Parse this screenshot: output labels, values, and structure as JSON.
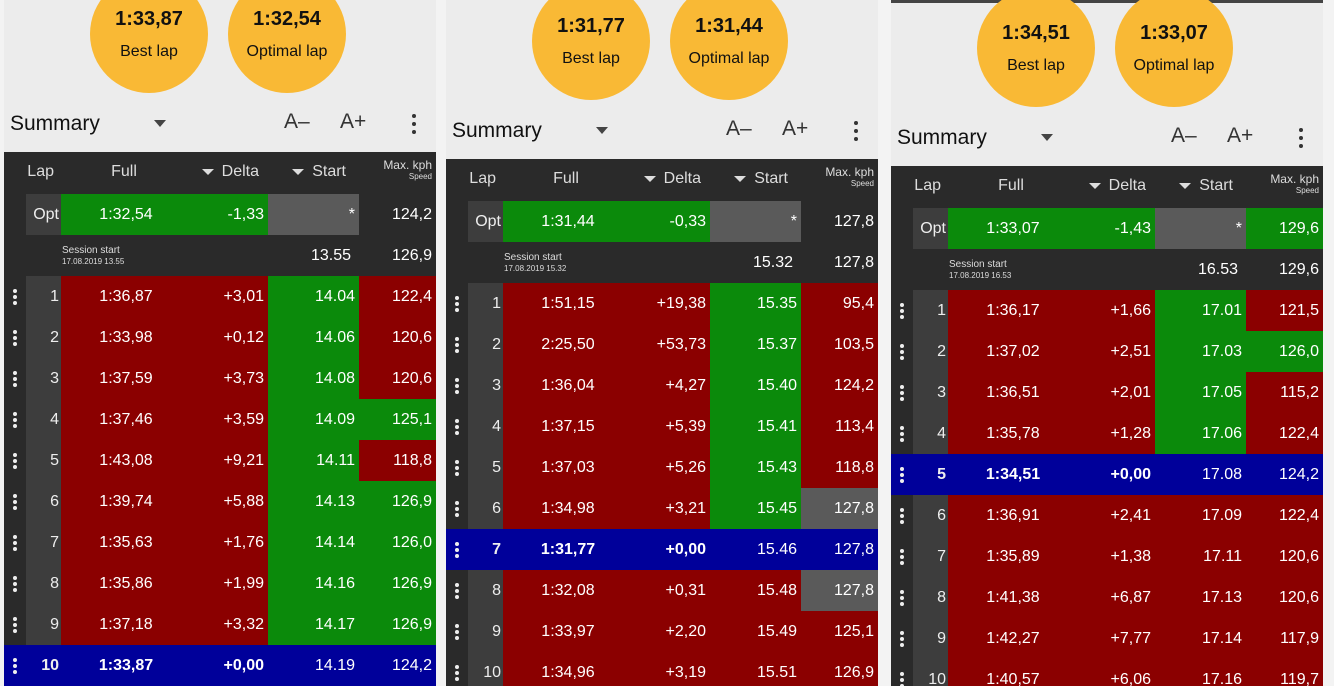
{
  "header_labels": {
    "lap": "Lap",
    "full": "Full",
    "delta": "Delta",
    "start": "Start",
    "max": "Max. kph",
    "max_sub": "Speed",
    "opt": "Opt",
    "session_start": "Session start",
    "view": "Summary",
    "font_minus": "A–",
    "font_plus": "A+",
    "best_lap": "Best lap",
    "optimal_lap": "Optimal lap"
  },
  "colors": {
    "red": "#8b0000",
    "green": "#0b8a0b",
    "gray": "#5a5a5a",
    "blue": "#00009a",
    "circle": "#f9b935"
  },
  "panels": [
    {
      "best": "1:33,87",
      "optimal": "1:32,54",
      "opt": {
        "full": "1:32,54",
        "delta": "-1,33",
        "start": "*",
        "max": "124,2",
        "max_color": "dark"
      },
      "session": {
        "date": "17.08.2019 13.55",
        "start": "13.55",
        "max": "126,9"
      },
      "laps": [
        {
          "lap": "1",
          "full": "1:36,87",
          "delta": "+3,01",
          "start": "14.04",
          "max": "122,4",
          "color": "red",
          "start_color": "green",
          "max_color": "red"
        },
        {
          "lap": "2",
          "full": "1:33,98",
          "delta": "+0,12",
          "start": "14.06",
          "max": "120,6",
          "color": "red",
          "start_color": "green",
          "max_color": "red"
        },
        {
          "lap": "3",
          "full": "1:37,59",
          "delta": "+3,73",
          "start": "14.08",
          "max": "120,6",
          "color": "red",
          "start_color": "green",
          "max_color": "red"
        },
        {
          "lap": "4",
          "full": "1:37,46",
          "delta": "+3,59",
          "start": "14.09",
          "max": "125,1",
          "color": "red",
          "start_color": "green",
          "max_color": "green"
        },
        {
          "lap": "5",
          "full": "1:43,08",
          "delta": "+9,21",
          "start": "14.11",
          "max": "118,8",
          "color": "red",
          "start_color": "green",
          "max_color": "red"
        },
        {
          "lap": "6",
          "full": "1:39,74",
          "delta": "+5,88",
          "start": "14.13",
          "max": "126,9",
          "color": "red",
          "start_color": "green",
          "max_color": "green"
        },
        {
          "lap": "7",
          "full": "1:35,63",
          "delta": "+1,76",
          "start": "14.14",
          "max": "126,0",
          "color": "red",
          "start_color": "green",
          "max_color": "green"
        },
        {
          "lap": "8",
          "full": "1:35,86",
          "delta": "+1,99",
          "start": "14.16",
          "max": "126,9",
          "color": "red",
          "start_color": "green",
          "max_color": "green"
        },
        {
          "lap": "9",
          "full": "1:37,18",
          "delta": "+3,32",
          "start": "14.17",
          "max": "126,9",
          "color": "red",
          "start_color": "green",
          "max_color": "green"
        },
        {
          "lap": "10",
          "full": "1:33,87",
          "delta": "+0,00",
          "start": "14.19",
          "max": "124,2",
          "color": "blue",
          "start_color": "blue",
          "max_color": "blue"
        }
      ]
    },
    {
      "best": "1:31,77",
      "optimal": "1:31,44",
      "opt": {
        "full": "1:31,44",
        "delta": "-0,33",
        "start": "*",
        "max": "127,8",
        "max_color": "dark"
      },
      "session": {
        "date": "17.08.2019 15.32",
        "start": "15.32",
        "max": "127,8"
      },
      "laps": [
        {
          "lap": "1",
          "full": "1:51,15",
          "delta": "+19,38",
          "start": "15.35",
          "max": "95,4",
          "color": "red",
          "start_color": "green",
          "max_color": "red"
        },
        {
          "lap": "2",
          "full": "2:25,50",
          "delta": "+53,73",
          "start": "15.37",
          "max": "103,5",
          "color": "red",
          "start_color": "green",
          "max_color": "red"
        },
        {
          "lap": "3",
          "full": "1:36,04",
          "delta": "+4,27",
          "start": "15.40",
          "max": "124,2",
          "color": "red",
          "start_color": "green",
          "max_color": "red"
        },
        {
          "lap": "4",
          "full": "1:37,15",
          "delta": "+5,39",
          "start": "15.41",
          "max": "113,4",
          "color": "red",
          "start_color": "green",
          "max_color": "red"
        },
        {
          "lap": "5",
          "full": "1:37,03",
          "delta": "+5,26",
          "start": "15.43",
          "max": "118,8",
          "color": "red",
          "start_color": "green",
          "max_color": "red"
        },
        {
          "lap": "6",
          "full": "1:34,98",
          "delta": "+3,21",
          "start": "15.45",
          "max": "127,8",
          "color": "red",
          "start_color": "green",
          "max_color": "gray"
        },
        {
          "lap": "7",
          "full": "1:31,77",
          "delta": "+0,00",
          "start": "15.46",
          "max": "127,8",
          "color": "blue",
          "start_color": "blue",
          "max_color": "blue"
        },
        {
          "lap": "8",
          "full": "1:32,08",
          "delta": "+0,31",
          "start": "15.48",
          "max": "127,8",
          "color": "red",
          "start_color": "red",
          "max_color": "gray"
        },
        {
          "lap": "9",
          "full": "1:33,97",
          "delta": "+2,20",
          "start": "15.49",
          "max": "125,1",
          "color": "red",
          "start_color": "red",
          "max_color": "red"
        },
        {
          "lap": "10",
          "full": "1:34,96",
          "delta": "+3,19",
          "start": "15.51",
          "max": "126,9",
          "color": "red",
          "start_color": "red",
          "max_color": "red"
        }
      ]
    },
    {
      "best": "1:34,51",
      "optimal": "1:33,07",
      "opt": {
        "full": "1:33,07",
        "delta": "-1,43",
        "start": "*",
        "max": "129,6",
        "max_color": "green"
      },
      "session": {
        "date": "17.08.2019 16.53",
        "start": "16.53",
        "max": "129,6"
      },
      "laps": [
        {
          "lap": "1",
          "full": "1:36,17",
          "delta": "+1,66",
          "start": "17.01",
          "max": "121,5",
          "color": "red",
          "start_color": "green",
          "max_color": "red"
        },
        {
          "lap": "2",
          "full": "1:37,02",
          "delta": "+2,51",
          "start": "17.03",
          "max": "126,0",
          "color": "red",
          "start_color": "green",
          "max_color": "green"
        },
        {
          "lap": "3",
          "full": "1:36,51",
          "delta": "+2,01",
          "start": "17.05",
          "max": "115,2",
          "color": "red",
          "start_color": "green",
          "max_color": "red"
        },
        {
          "lap": "4",
          "full": "1:35,78",
          "delta": "+1,28",
          "start": "17.06",
          "max": "122,4",
          "color": "red",
          "start_color": "green",
          "max_color": "red"
        },
        {
          "lap": "5",
          "full": "1:34,51",
          "delta": "+0,00",
          "start": "17.08",
          "max": "124,2",
          "color": "blue",
          "start_color": "blue",
          "max_color": "blue"
        },
        {
          "lap": "6",
          "full": "1:36,91",
          "delta": "+2,41",
          "start": "17.09",
          "max": "122,4",
          "color": "red",
          "start_color": "red",
          "max_color": "red"
        },
        {
          "lap": "7",
          "full": "1:35,89",
          "delta": "+1,38",
          "start": "17.11",
          "max": "120,6",
          "color": "red",
          "start_color": "red",
          "max_color": "red"
        },
        {
          "lap": "8",
          "full": "1:41,38",
          "delta": "+6,87",
          "start": "17.13",
          "max": "120,6",
          "color": "red",
          "start_color": "red",
          "max_color": "red"
        },
        {
          "lap": "9",
          "full": "1:42,27",
          "delta": "+7,77",
          "start": "17.14",
          "max": "117,9",
          "color": "red",
          "start_color": "red",
          "max_color": "red"
        },
        {
          "lap": "10",
          "full": "1:40,57",
          "delta": "+6,06",
          "start": "17.16",
          "max": "119,7",
          "color": "red",
          "start_color": "red",
          "max_color": "red"
        }
      ]
    }
  ]
}
